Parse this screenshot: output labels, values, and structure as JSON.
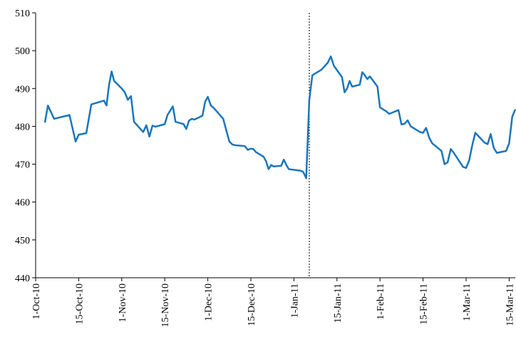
{
  "chart_data": {
    "type": "line",
    "color": "#1b75bb",
    "x": [
      "2010-10-04",
      "2010-10-05",
      "2010-10-07",
      "2010-10-12",
      "2010-10-14",
      "2010-10-15",
      "2010-10-18",
      "2010-10-20",
      "2010-10-22",
      "2010-10-25",
      "2010-10-26",
      "2010-10-27",
      "2010-10-28",
      "2010-10-29",
      "2010-11-01",
      "2010-11-02",
      "2010-11-03",
      "2010-11-04",
      "2010-11-05",
      "2010-11-08",
      "2010-11-09",
      "2010-11-10",
      "2010-11-11",
      "2010-11-12",
      "2010-11-15",
      "2010-11-16",
      "2010-11-18",
      "2010-11-19",
      "2010-11-22",
      "2010-11-23",
      "2010-11-24",
      "2010-11-25",
      "2010-11-26",
      "2010-11-29",
      "2010-11-30",
      "2010-12-01",
      "2010-12-02",
      "2010-12-03",
      "2010-12-06",
      "2010-12-07",
      "2010-12-08",
      "2010-12-09",
      "2010-12-10",
      "2010-12-13",
      "2010-12-14",
      "2010-12-15",
      "2010-12-16",
      "2010-12-17",
      "2010-12-20",
      "2010-12-21",
      "2010-12-22",
      "2010-12-23",
      "2010-12-24",
      "2010-12-27",
      "2010-12-28",
      "2010-12-29",
      "2010-12-30",
      "2011-01-03",
      "2011-01-04",
      "2011-01-05",
      "2011-01-06",
      "2011-01-07",
      "2011-01-10",
      "2011-01-12",
      "2011-01-13",
      "2011-01-14",
      "2011-01-17",
      "2011-01-18",
      "2011-01-19",
      "2011-01-20",
      "2011-01-21",
      "2011-01-24",
      "2011-01-25",
      "2011-01-26",
      "2011-01-27",
      "2011-01-28",
      "2011-01-31",
      "2011-02-01",
      "2011-02-02",
      "2011-02-03",
      "2011-02-04",
      "2011-02-07",
      "2011-02-08",
      "2011-02-09",
      "2011-02-10",
      "2011-02-11",
      "2011-02-14",
      "2011-02-15",
      "2011-02-16",
      "2011-02-17",
      "2011-02-18",
      "2011-02-21",
      "2011-02-22",
      "2011-02-23",
      "2011-02-24",
      "2011-02-25",
      "2011-02-28",
      "2011-03-01",
      "2011-03-02",
      "2011-03-03",
      "2011-03-04",
      "2011-03-07",
      "2011-03-08",
      "2011-03-09",
      "2011-03-10",
      "2011-03-11",
      "2011-03-14",
      "2011-03-15",
      "2011-03-16",
      "2011-03-17"
    ],
    "values": [
      481.0,
      485.5,
      482.0,
      483.0,
      476.0,
      477.8,
      478.2,
      485.8,
      486.2,
      486.8,
      485.5,
      491.0,
      494.5,
      492.0,
      490.0,
      489.0,
      487.0,
      488.0,
      481.2,
      478.5,
      480.3,
      477.3,
      480.2,
      479.9,
      480.6,
      483.0,
      485.3,
      481.2,
      480.6,
      479.3,
      481.5,
      482.0,
      481.8,
      482.8,
      486.5,
      487.8,
      485.5,
      484.8,
      482.0,
      479.0,
      476.0,
      475.2,
      475.0,
      474.8,
      473.8,
      474.1,
      474.0,
      473.2,
      472.0,
      470.8,
      468.7,
      469.8,
      469.4,
      469.6,
      471.2,
      469.8,
      468.7,
      468.3,
      468.0,
      466.3,
      487.0,
      493.5,
      495.0,
      496.8,
      498.5,
      496.0,
      493.0,
      489.0,
      490.0,
      492.0,
      490.5,
      491.0,
      494.3,
      493.5,
      492.5,
      493.2,
      490.5,
      485.0,
      484.5,
      484.0,
      483.3,
      484.3,
      480.5,
      480.7,
      481.6,
      480.0,
      478.5,
      478.3,
      479.6,
      477.0,
      475.5,
      473.5,
      470.0,
      470.5,
      474.0,
      473.0,
      469.3,
      469.0,
      471.0,
      475.0,
      478.3,
      475.7,
      475.3,
      478.0,
      474.3,
      473.0,
      473.5,
      475.5,
      482.5,
      484.5
    ],
    "vline": "2011-01-06",
    "xlim": [
      "2010-10-01",
      "2011-03-17"
    ],
    "xticks": [
      {
        "value": "2010-10-01",
        "label": "1-Oct-10"
      },
      {
        "value": "2010-10-15",
        "label": "15-Oct-10"
      },
      {
        "value": "2010-11-01",
        "label": "1-Nov-10"
      },
      {
        "value": "2010-11-15",
        "label": "15-Nov-10"
      },
      {
        "value": "2010-12-01",
        "label": "1-Dec-10"
      },
      {
        "value": "2010-12-15",
        "label": "15-Dec-10"
      },
      {
        "value": "2011-01-01",
        "label": "1-Jan-11"
      },
      {
        "value": "2011-01-15",
        "label": "15-Jan-11"
      },
      {
        "value": "2011-02-01",
        "label": "1-Feb-11"
      },
      {
        "value": "2011-02-15",
        "label": "15-Feb-11"
      },
      {
        "value": "2011-03-01",
        "label": "1-Mar-11"
      },
      {
        "value": "2011-03-15",
        "label": "15-Mar-11"
      }
    ],
    "ylim": [
      440,
      510
    ],
    "yticks": [
      440,
      450,
      460,
      470,
      480,
      490,
      500,
      510
    ]
  }
}
